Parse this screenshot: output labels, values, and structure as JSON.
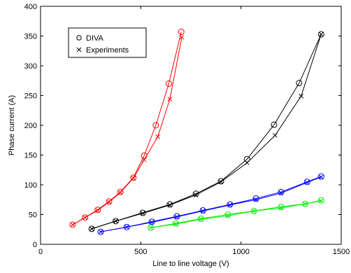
{
  "chart_data": {
    "type": "line",
    "title": "",
    "xlabel": "Line to line voltage (V)",
    "ylabel": "Phase current (A)",
    "xlim": [
      0,
      1500
    ],
    "ylim": [
      0,
      400
    ],
    "xticks": [
      0,
      500,
      1000,
      1500
    ],
    "yticks": [
      0,
      50,
      100,
      150,
      200,
      250,
      300,
      350,
      400
    ],
    "grid": false,
    "legend_position": "top-left",
    "legend": [
      {
        "marker": "o",
        "label": "DIVA"
      },
      {
        "marker": "x",
        "label": "Experiments"
      }
    ],
    "series": [
      {
        "color": "#ff0000",
        "diva": {
          "x": [
            160,
            222,
            285,
            342,
            398,
            463,
            517,
            575,
            640,
            702
          ],
          "y": [
            33,
            45,
            58,
            72,
            88,
            112,
            149,
            200,
            270,
            357
          ]
        },
        "experiments": {
          "x": [
            160,
            222,
            285,
            342,
            398,
            463,
            517,
            585,
            645,
            705
          ],
          "y": [
            33,
            45,
            57,
            71,
            87,
            111,
            142,
            181,
            244,
            348
          ]
        }
      },
      {
        "color": "#000000",
        "diva": {
          "x": [
            255,
            375,
            510,
            645,
            775,
            900,
            1030,
            1165,
            1290,
            1400
          ],
          "y": [
            26,
            39,
            53,
            67,
            85,
            106,
            143,
            201,
            271,
            353
          ]
        },
        "experiments": {
          "x": [
            255,
            375,
            510,
            645,
            775,
            900,
            1030,
            1170,
            1300,
            1400
          ],
          "y": [
            26,
            39,
            52,
            66,
            83,
            105,
            137,
            183,
            249,
            353
          ]
        }
      },
      {
        "color": "#0000ff",
        "diva": {
          "x": [
            300,
            430,
            555,
            680,
            810,
            945,
            1075,
            1200,
            1330,
            1400
          ],
          "y": [
            21,
            29,
            38,
            47,
            57,
            67,
            77,
            88,
            105,
            114
          ]
        },
        "experiments": {
          "x": [
            300,
            430,
            555,
            680,
            810,
            945,
            1075,
            1200,
            1330,
            1400
          ],
          "y": [
            21,
            29,
            37,
            46,
            56,
            66,
            75,
            86,
            104,
            113
          ]
        }
      },
      {
        "color": "#00ee00",
        "diva": {
          "x": [
            550,
            675,
            800,
            935,
            1065,
            1200,
            1320,
            1400
          ],
          "y": [
            28,
            35,
            43,
            50,
            56,
            63,
            68,
            74
          ]
        },
        "experiments": {
          "x": [
            550,
            675,
            800,
            935,
            1065,
            1200,
            1320,
            1400
          ],
          "y": [
            28,
            34,
            42,
            48,
            56,
            61,
            68,
            73
          ]
        }
      }
    ]
  }
}
